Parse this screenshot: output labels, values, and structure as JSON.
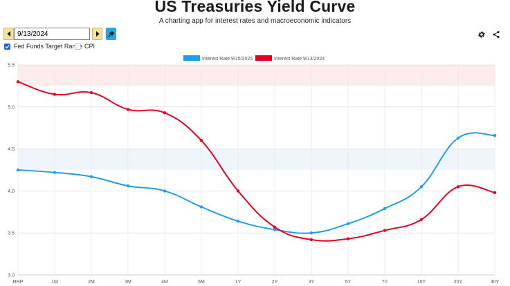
{
  "header": {
    "title": "US Treasuries Yield Curve",
    "subtitle": "A charting app for interest rates and macroeconomic indicators"
  },
  "controls": {
    "date_value": "9/13/2024",
    "prev_icon": "arrow-left-icon",
    "next_icon": "arrow-right-icon",
    "pin_icon": "pin-icon",
    "settings_icon": "gear-icon",
    "share_icon": "share-icon"
  },
  "toggles": [
    {
      "label": "Fed Funds Target Range",
      "checked": true
    },
    {
      "label": "CPI",
      "checked": false
    }
  ],
  "chart_data": {
    "type": "line",
    "categories": [
      "RRP",
      "1M",
      "2M",
      "3M",
      "4M",
      "6M",
      "1Y",
      "2Y",
      "3Y",
      "5Y",
      "7Y",
      "10Y",
      "20Y",
      "30Y"
    ],
    "ylim": [
      3.0,
      5.5
    ],
    "yticks": [
      "3.0",
      "3.5",
      "4.0",
      "4.5",
      "5.0",
      "5.5"
    ],
    "grid": true,
    "legend_position": "top",
    "bands": [
      {
        "name": "Fed Funds Target Range (9/13/2024)",
        "range": [
          5.25,
          5.5
        ],
        "color": "#fdecec"
      },
      {
        "name": "Fed Funds Target Range (9/15/2025)",
        "range": [
          4.25,
          4.5
        ],
        "color": "#eef5fd"
      }
    ],
    "series": [
      {
        "name": "Interest Rate 9/15/2025",
        "color": "#1f9ef0",
        "values": [
          4.25,
          4.22,
          4.17,
          4.06,
          4.0,
          3.81,
          3.64,
          3.54,
          3.5,
          3.61,
          3.79,
          4.05,
          4.63,
          4.66
        ]
      },
      {
        "name": "Interest Rate 9/13/2024",
        "color": "#e8001c",
        "values": [
          5.3,
          5.15,
          5.17,
          4.97,
          4.93,
          4.6,
          4.0,
          3.57,
          3.42,
          3.43,
          3.53,
          3.66,
          4.05,
          3.98
        ]
      }
    ]
  }
}
